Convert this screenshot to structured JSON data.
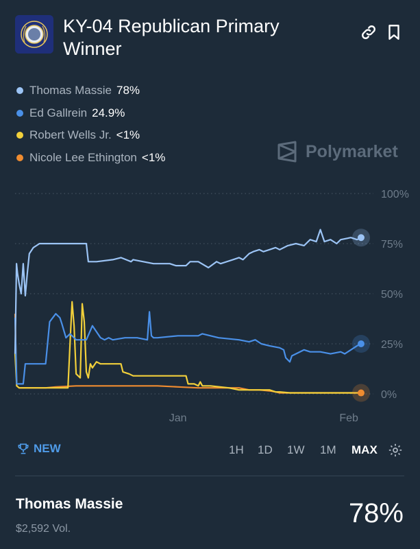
{
  "header": {
    "title": "KY-04 Republican Primary Winner"
  },
  "brand": "Polymarket",
  "controls": {
    "new_label": "NEW",
    "timeframes": [
      "1H",
      "1D",
      "1W",
      "1M",
      "MAX"
    ],
    "active_timeframe": "MAX"
  },
  "outcome": {
    "name": "Thomas Massie",
    "volume": "$2,592 Vol.",
    "percent": "78%"
  },
  "colors": {
    "background": "#1d2b39",
    "massie": "#9cc4f5",
    "gallrein": "#4a90e8",
    "wells": "#f2d03b",
    "ethington": "#f08c30"
  },
  "chart_data": {
    "type": "line",
    "ylim": [
      0,
      100
    ],
    "y_ticks": [
      "100%",
      "75%",
      "50%",
      "25%",
      "0%"
    ],
    "x_ticks": [
      "Jan",
      "Feb"
    ],
    "grid": true,
    "series": [
      {
        "name": "Thomas Massie",
        "label": "78%",
        "color": "#9cc4f5",
        "x": [
          0,
          0.7,
          1.2,
          2,
          3,
          4,
          5,
          6,
          7,
          9,
          12,
          20,
          30,
          35,
          36,
          40,
          48,
          52,
          57,
          58,
          63,
          68,
          76,
          79,
          84,
          86,
          90,
          95,
          99,
          101,
          107,
          110,
          112,
          115,
          117,
          120,
          122,
          125,
          128,
          130,
          134,
          138,
          142,
          145,
          148,
          150,
          152,
          155,
          158,
          160,
          165,
          168,
          170
        ],
        "values": [
          20,
          65,
          60,
          55,
          50,
          65,
          49,
          60,
          70,
          73,
          75,
          75,
          75,
          75,
          66,
          66,
          67,
          68,
          66,
          67,
          66,
          65,
          65,
          64,
          64,
          66,
          66,
          63,
          66,
          65,
          67,
          68,
          67,
          70,
          71,
          72,
          71,
          72,
          73,
          72,
          74,
          75,
          74,
          77,
          76,
          82,
          76,
          77,
          75,
          77,
          78,
          77,
          78
        ]
      },
      {
        "name": "Ed Gallrein",
        "label": "24.9%",
        "color": "#4a90e8",
        "x": [
          0,
          0.8,
          2,
          4,
          5,
          12,
          15,
          17,
          20,
          22,
          23,
          25,
          27,
          30,
          32,
          35,
          38,
          42,
          44,
          46,
          48,
          54,
          60,
          65,
          66,
          67,
          68,
          70,
          80,
          90,
          92,
          100,
          110,
          115,
          118,
          121,
          125,
          130,
          132,
          133,
          135,
          136,
          138,
          142,
          145,
          150,
          155,
          160,
          162,
          165,
          168,
          170
        ],
        "values": [
          38,
          5,
          5,
          5,
          15,
          15,
          15,
          36,
          40,
          38,
          35,
          28,
          30,
          27,
          27,
          27,
          34,
          28,
          27,
          28,
          27,
          28,
          28,
          27,
          41,
          29,
          28,
          28,
          29,
          29,
          30,
          28,
          27,
          26,
          27,
          25,
          24,
          23,
          22,
          18,
          16,
          19,
          20,
          22,
          21,
          21,
          20,
          21,
          20,
          22,
          24,
          25
        ]
      },
      {
        "name": "Robert Wells Jr.",
        "label": "<1%",
        "color": "#f2d03b",
        "x": [
          0,
          0.8,
          2,
          5,
          26,
          27,
          28,
          29,
          30,
          32,
          33,
          34,
          35,
          36,
          37,
          38,
          40,
          42,
          48,
          52,
          53,
          56,
          58,
          70,
          84,
          85,
          86,
          88,
          90,
          91,
          92,
          96,
          105,
          110,
          115,
          125,
          128,
          130,
          135,
          140,
          150,
          160,
          165,
          168,
          170
        ],
        "values": [
          20,
          4,
          3,
          3,
          3,
          25,
          46,
          34,
          10,
          8,
          45,
          36,
          11,
          8,
          15,
          13,
          16,
          15,
          15,
          15,
          11,
          10,
          9,
          9,
          9,
          5,
          5,
          5,
          4,
          6,
          4,
          4,
          3,
          2,
          2,
          2,
          1,
          1,
          0.5,
          0.5,
          0.5,
          0.5,
          0.5,
          0.5,
          0.5
        ]
      },
      {
        "name": "Nicole Lee Ethington",
        "label": "<1%",
        "color": "#f08c30",
        "x": [
          0,
          0.8,
          2,
          15,
          20,
          30,
          40,
          50,
          60,
          70,
          80,
          90,
          100,
          110,
          115,
          120,
          125,
          128,
          130,
          140,
          150,
          160,
          165,
          170
        ],
        "values": [
          40,
          4,
          3,
          3,
          3.5,
          4,
          4,
          4,
          4,
          4,
          3.5,
          3,
          3,
          3,
          2,
          2,
          1.5,
          1,
          0.5,
          0.5,
          0.5,
          0.5,
          0.5,
          0.5
        ]
      }
    ],
    "axis": {
      "x_min": 0,
      "x_max": 170,
      "jan_at": 80,
      "feb_at": 164
    }
  }
}
